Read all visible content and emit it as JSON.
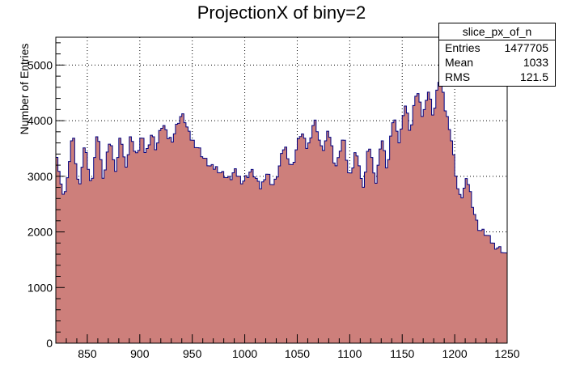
{
  "chart_data": {
    "type": "area",
    "title": "ProjectionX of biny=2",
    "xlabel": "",
    "ylabel": "Number of Entries",
    "xlim": [
      820,
      1250
    ],
    "ylim": [
      0,
      5500
    ],
    "x_ticks": [
      850,
      900,
      950,
      1000,
      1050,
      1100,
      1150,
      1200,
      1250
    ],
    "y_ticks": [
      0,
      1000,
      2000,
      3000,
      4000,
      5000
    ],
    "grid": true,
    "fill_color": "#cd7f7b",
    "line_color": "#000080",
    "points": [
      [
        820,
        3150
      ],
      [
        821,
        3400
      ],
      [
        822,
        3300
      ],
      [
        824,
        2900
      ],
      [
        826,
        2750
      ],
      [
        828,
        2700
      ],
      [
        830,
        2750
      ],
      [
        832,
        3100
      ],
      [
        834,
        3500
      ],
      [
        836,
        3750
      ],
      [
        838,
        3500
      ],
      [
        840,
        3000
      ],
      [
        842,
        2850
      ],
      [
        844,
        3000
      ],
      [
        846,
        3350
      ],
      [
        848,
        3600
      ],
      [
        850,
        3350
      ],
      [
        852,
        2900
      ],
      [
        854,
        2850
      ],
      [
        856,
        3150
      ],
      [
        858,
        3500
      ],
      [
        860,
        3800
      ],
      [
        862,
        3500
      ],
      [
        864,
        3050
      ],
      [
        866,
        3000
      ],
      [
        868,
        3250
      ],
      [
        870,
        3550
      ],
      [
        872,
        3700
      ],
      [
        874,
        3400
      ],
      [
        876,
        3100
      ],
      [
        878,
        3150
      ],
      [
        880,
        3500
      ],
      [
        882,
        3750
      ],
      [
        884,
        3450
      ],
      [
        886,
        3200
      ],
      [
        888,
        3250
      ],
      [
        890,
        3550
      ],
      [
        892,
        3800
      ],
      [
        894,
        3550
      ],
      [
        896,
        3350
      ],
      [
        898,
        3400
      ],
      [
        900,
        3600
      ],
      [
        902,
        3750
      ],
      [
        904,
        3500
      ],
      [
        906,
        3400
      ],
      [
        908,
        3550
      ],
      [
        910,
        3700
      ],
      [
        912,
        3800
      ],
      [
        914,
        3550
      ],
      [
        916,
        3500
      ],
      [
        918,
        3700
      ],
      [
        920,
        3850
      ],
      [
        922,
        3950
      ],
      [
        924,
        3850
      ],
      [
        926,
        3700
      ],
      [
        928,
        3700
      ],
      [
        930,
        3650
      ],
      [
        932,
        3700
      ],
      [
        934,
        3850
      ],
      [
        936,
        3950
      ],
      [
        938,
        4050
      ],
      [
        940,
        4100
      ],
      [
        942,
        4050
      ],
      [
        944,
        3950
      ],
      [
        946,
        3800
      ],
      [
        948,
        3700
      ],
      [
        950,
        3650
      ],
      [
        952,
        3600
      ],
      [
        954,
        3550
      ],
      [
        956,
        3500
      ],
      [
        958,
        3450
      ],
      [
        960,
        3350
      ],
      [
        962,
        3300
      ],
      [
        964,
        3250
      ],
      [
        966,
        3200
      ],
      [
        968,
        3150
      ],
      [
        970,
        3150
      ],
      [
        972,
        3150
      ],
      [
        974,
        3150
      ],
      [
        976,
        3100
      ],
      [
        978,
        3050
      ],
      [
        980,
        3050
      ],
      [
        982,
        3000
      ],
      [
        984,
        2950
      ],
      [
        986,
        2950
      ],
      [
        988,
        3000
      ],
      [
        990,
        3100
      ],
      [
        992,
        3050
      ],
      [
        994,
        3000
      ],
      [
        996,
        2950
      ],
      [
        998,
        2900
      ],
      [
        1000,
        2950
      ],
      [
        1002,
        3000
      ],
      [
        1004,
        3050
      ],
      [
        1006,
        3100
      ],
      [
        1008,
        3050
      ],
      [
        1010,
        3000
      ],
      [
        1012,
        2900
      ],
      [
        1014,
        2800
      ],
      [
        1016,
        2800
      ],
      [
        1018,
        2950
      ],
      [
        1020,
        3050
      ],
      [
        1022,
        3050
      ],
      [
        1024,
        2950
      ],
      [
        1026,
        2850
      ],
      [
        1028,
        2850
      ],
      [
        1030,
        2950
      ],
      [
        1032,
        3100
      ],
      [
        1034,
        3250
      ],
      [
        1036,
        3450
      ],
      [
        1038,
        3550
      ],
      [
        1040,
        3450
      ],
      [
        1042,
        3300
      ],
      [
        1044,
        3150
      ],
      [
        1046,
        3200
      ],
      [
        1048,
        3400
      ],
      [
        1050,
        3550
      ],
      [
        1052,
        3700
      ],
      [
        1054,
        3800
      ],
      [
        1056,
        3700
      ],
      [
        1058,
        3550
      ],
      [
        1060,
        3500
      ],
      [
        1062,
        3650
      ],
      [
        1064,
        3850
      ],
      [
        1066,
        4000
      ],
      [
        1068,
        3950
      ],
      [
        1070,
        3750
      ],
      [
        1072,
        3550
      ],
      [
        1074,
        3450
      ],
      [
        1076,
        3550
      ],
      [
        1078,
        3700
      ],
      [
        1080,
        3800
      ],
      [
        1082,
        3650
      ],
      [
        1084,
        3400
      ],
      [
        1086,
        3200
      ],
      [
        1088,
        3200
      ],
      [
        1090,
        3400
      ],
      [
        1092,
        3600
      ],
      [
        1094,
        3700
      ],
      [
        1096,
        3500
      ],
      [
        1098,
        3150
      ],
      [
        1100,
        2950
      ],
      [
        1102,
        3050
      ],
      [
        1104,
        3300
      ],
      [
        1106,
        3500
      ],
      [
        1108,
        3350
      ],
      [
        1110,
        3050
      ],
      [
        1112,
        2800
      ],
      [
        1114,
        2900
      ],
      [
        1116,
        3250
      ],
      [
        1118,
        3550
      ],
      [
        1120,
        3500
      ],
      [
        1122,
        3150
      ],
      [
        1124,
        2850
      ],
      [
        1126,
        2950
      ],
      [
        1128,
        3400
      ],
      [
        1130,
        3700
      ],
      [
        1132,
        3600
      ],
      [
        1134,
        3250
      ],
      [
        1136,
        3150
      ],
      [
        1138,
        3450
      ],
      [
        1140,
        3900
      ],
      [
        1142,
        4100
      ],
      [
        1144,
        3900
      ],
      [
        1146,
        3600
      ],
      [
        1148,
        3650
      ],
      [
        1150,
        4000
      ],
      [
        1152,
        4300
      ],
      [
        1154,
        4250
      ],
      [
        1156,
        3950
      ],
      [
        1158,
        3800
      ],
      [
        1160,
        4050
      ],
      [
        1162,
        4400
      ],
      [
        1164,
        4550
      ],
      [
        1166,
        4400
      ],
      [
        1168,
        4150
      ],
      [
        1170,
        4050
      ],
      [
        1172,
        4300
      ],
      [
        1174,
        4550
      ],
      [
        1176,
        4500
      ],
      [
        1178,
        4200
      ],
      [
        1180,
        4100
      ],
      [
        1182,
        4350
      ],
      [
        1184,
        4650
      ],
      [
        1186,
        4800
      ],
      [
        1188,
        4600
      ],
      [
        1190,
        4300
      ],
      [
        1192,
        4100
      ],
      [
        1194,
        4000
      ],
      [
        1196,
        3800
      ],
      [
        1198,
        3500
      ],
      [
        1200,
        3200
      ],
      [
        1202,
        2900
      ],
      [
        1204,
        2650
      ],
      [
        1206,
        2600
      ],
      [
        1208,
        2700
      ],
      [
        1210,
        2850
      ],
      [
        1212,
        2950
      ],
      [
        1214,
        2800
      ],
      [
        1216,
        2600
      ],
      [
        1218,
        2400
      ],
      [
        1220,
        2250
      ],
      [
        1222,
        2100
      ],
      [
        1224,
        2050
      ],
      [
        1226,
        2000
      ],
      [
        1228,
        2000
      ],
      [
        1230,
        1950
      ],
      [
        1232,
        1900
      ],
      [
        1234,
        1850
      ],
      [
        1236,
        1800
      ],
      [
        1238,
        1750
      ],
      [
        1240,
        1750
      ],
      [
        1242,
        1700
      ],
      [
        1244,
        1700
      ],
      [
        1246,
        1650
      ],
      [
        1248,
        1600
      ],
      [
        1250,
        1550
      ]
    ]
  },
  "stats_box": {
    "name": "slice_px_of_n",
    "entries_label": "Entries",
    "entries_value": "1477705",
    "mean_label": "Mean",
    "mean_value": "1033",
    "rms_label": "RMS",
    "rms_value": "121.5"
  }
}
